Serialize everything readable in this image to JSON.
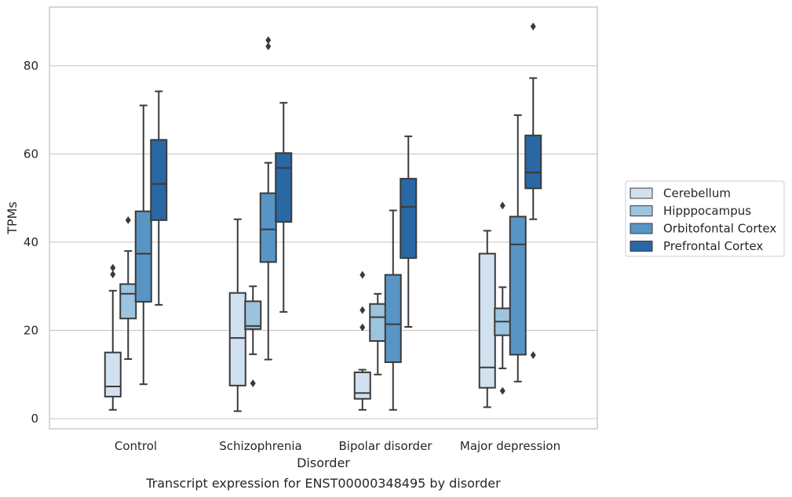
{
  "caption": "Transcript expression for ENST00000348495 by disorder",
  "chart_data": {
    "type": "box",
    "xlabel": "Disorder",
    "ylabel": "TPMs",
    "ylim": [
      -2.3,
      93.3
    ],
    "yticks": [
      0,
      20,
      40,
      60,
      80
    ],
    "grid": true,
    "legend_position": "right",
    "categories": [
      "Control",
      "Schizophrenia",
      "Bipolar disorder",
      "Major depression"
    ],
    "series": [
      {
        "name": "Cerebellum",
        "color": "#d1e1f0",
        "boxes": [
          {
            "whislo": 2.0,
            "q1": 5.0,
            "med": 7.3,
            "q3": 15.0,
            "whishi": 29.0,
            "fliers": [
              32.7,
              34.2
            ]
          },
          {
            "whislo": 1.7,
            "q1": 7.5,
            "med": 18.3,
            "q3": 28.5,
            "whishi": 45.2,
            "fliers": []
          },
          {
            "whislo": 2.0,
            "q1": 4.5,
            "med": 5.8,
            "q3": 10.5,
            "whishi": 11.1,
            "fliers": [
              20.7,
              24.6,
              32.6
            ]
          },
          {
            "whislo": 2.6,
            "q1": 7.0,
            "med": 11.6,
            "q3": 37.4,
            "whishi": 42.6,
            "fliers": []
          }
        ]
      },
      {
        "name": "Hipppocampus",
        "color": "#9dc4de",
        "boxes": [
          {
            "whislo": 13.5,
            "q1": 22.7,
            "med": 28.3,
            "q3": 30.5,
            "whishi": 38.0,
            "fliers": [
              45.0
            ]
          },
          {
            "whislo": 14.6,
            "q1": 20.3,
            "med": 21.0,
            "q3": 26.6,
            "whishi": 30.0,
            "fliers": [
              8.0
            ]
          },
          {
            "whislo": 10.0,
            "q1": 17.6,
            "med": 23.0,
            "q3": 26.0,
            "whishi": 28.3,
            "fliers": []
          },
          {
            "whislo": 11.4,
            "q1": 18.9,
            "med": 22.0,
            "q3": 25.0,
            "whishi": 29.8,
            "fliers": [
              6.3,
              48.3
            ]
          }
        ]
      },
      {
        "name": "Orbitofontal Cortex",
        "color": "#5895c5",
        "boxes": [
          {
            "whislo": 7.8,
            "q1": 26.5,
            "med": 37.4,
            "q3": 47.0,
            "whishi": 71.0,
            "fliers": []
          },
          {
            "whislo": 13.4,
            "q1": 35.5,
            "med": 42.9,
            "q3": 51.1,
            "whishi": 58.0,
            "fliers": [
              84.4,
              85.8
            ]
          },
          {
            "whislo": 2.0,
            "q1": 12.8,
            "med": 21.4,
            "q3": 32.6,
            "whishi": 47.2,
            "fliers": []
          },
          {
            "whislo": 8.4,
            "q1": 14.5,
            "med": 39.5,
            "q3": 45.8,
            "whishi": 68.8,
            "fliers": []
          }
        ]
      },
      {
        "name": "Prefrontal Cortex",
        "color": "#2967a5",
        "boxes": [
          {
            "whislo": 25.8,
            "q1": 45.0,
            "med": 53.2,
            "q3": 63.2,
            "whishi": 74.2,
            "fliers": []
          },
          {
            "whislo": 24.2,
            "q1": 44.6,
            "med": 56.8,
            "q3": 60.2,
            "whishi": 71.6,
            "fliers": []
          },
          {
            "whislo": 20.8,
            "q1": 36.4,
            "med": 48.0,
            "q3": 54.4,
            "whishi": 64.0,
            "fliers": []
          },
          {
            "whislo": 45.2,
            "q1": 52.2,
            "med": 55.8,
            "q3": 64.2,
            "whishi": 77.2,
            "fliers": [
              14.4,
              88.9
            ]
          }
        ]
      }
    ]
  }
}
